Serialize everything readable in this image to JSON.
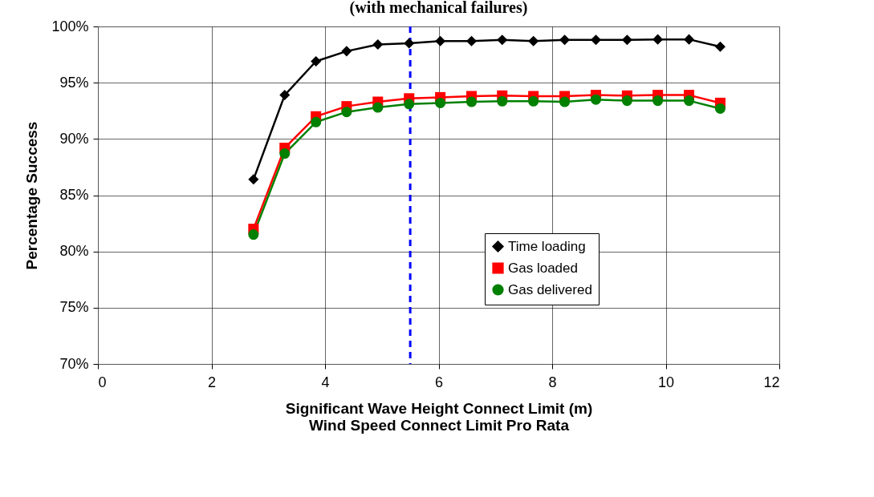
{
  "chart_data": {
    "type": "line",
    "title": "(with mechanical failures)",
    "xlabel": [
      "Significant Wave Height Connect Limit (m)",
      "Wind Speed Connect Limit Pro Rata"
    ],
    "ylabel": "Percentage Success",
    "x": [
      2.74,
      3.29,
      3.84,
      4.38,
      4.93,
      5.48,
      6.03,
      6.58,
      7.12,
      7.67,
      8.22,
      8.77,
      9.32,
      9.86,
      10.41,
      10.96
    ],
    "series": [
      {
        "name": "Time loading",
        "color": "#000000",
        "marker": "diamond",
        "values": [
          86.4,
          93.9,
          96.9,
          97.8,
          98.4,
          98.5,
          98.7,
          98.7,
          98.8,
          98.7,
          98.8,
          98.8,
          98.8,
          98.85,
          98.85,
          98.2
        ]
      },
      {
        "name": "Gas loaded",
        "color": "#ff0000",
        "marker": "square",
        "values": [
          82.0,
          89.2,
          92.0,
          92.9,
          93.3,
          93.6,
          93.7,
          93.8,
          93.85,
          93.8,
          93.8,
          93.9,
          93.85,
          93.9,
          93.9,
          93.2
        ]
      },
      {
        "name": "Gas delivered",
        "color": "#008000",
        "marker": "circle",
        "values": [
          81.5,
          88.7,
          91.5,
          92.4,
          92.8,
          93.1,
          93.2,
          93.3,
          93.35,
          93.35,
          93.3,
          93.5,
          93.4,
          93.4,
          93.4,
          92.7
        ]
      }
    ],
    "xlim": [
      0,
      12
    ],
    "xticks": [
      0,
      2,
      4,
      6,
      8,
      10,
      12
    ],
    "ylim": [
      70,
      100
    ],
    "yticks": [
      {
        "value": 70,
        "label": "70%"
      },
      {
        "value": 75,
        "label": "75%"
      },
      {
        "value": 80,
        "label": "80%"
      },
      {
        "value": 85,
        "label": "85%"
      },
      {
        "value": 90,
        "label": "90%"
      },
      {
        "value": 95,
        "label": "95%"
      },
      {
        "value": 100,
        "label": "100%"
      }
    ],
    "ref_lines": [
      {
        "axis": "x",
        "value": 5.5,
        "color": "#0000ff",
        "line_style": "dashed"
      }
    ],
    "grid": true,
    "legend": "right",
    "line_style": "solid"
  }
}
